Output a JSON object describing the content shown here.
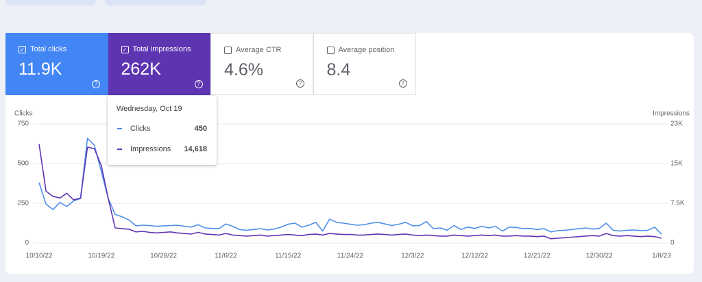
{
  "cards": [
    {
      "label": "Total clicks",
      "value": "11.9K"
    },
    {
      "label": "Total impressions",
      "value": "262K"
    },
    {
      "label": "Average CTR",
      "value": "4.6%"
    },
    {
      "label": "Average position",
      "value": "8.4"
    }
  ],
  "tooltip": {
    "date": "Wednesday, Oct 19",
    "rows": [
      {
        "name": "Clicks",
        "value": "450"
      },
      {
        "name": "Impressions",
        "value": "14,618"
      }
    ]
  },
  "chart_data": {
    "type": "line",
    "y_label": "Clicks",
    "y2_label": "Impressions",
    "categories": [
      "10/10/22",
      null,
      null,
      null,
      null,
      null,
      null,
      null,
      null,
      "10/19/22",
      null,
      null,
      null,
      null,
      null,
      null,
      null,
      null,
      "10/28/22",
      null,
      null,
      null,
      null,
      null,
      null,
      null,
      null,
      "11/6/22",
      null,
      null,
      null,
      null,
      null,
      null,
      null,
      null,
      "11/15/22",
      null,
      null,
      null,
      null,
      null,
      null,
      null,
      null,
      "11/24/22",
      null,
      null,
      null,
      null,
      null,
      null,
      null,
      null,
      "12/3/22",
      null,
      null,
      null,
      null,
      null,
      null,
      null,
      null,
      "12/12/22",
      null,
      null,
      null,
      null,
      null,
      null,
      null,
      null,
      "12/21/22",
      null,
      null,
      null,
      null,
      null,
      null,
      null,
      null,
      "12/30/22",
      null,
      null,
      null,
      null,
      null,
      null,
      null,
      null,
      "1/8/23"
    ],
    "series": [
      {
        "name": "Clicks",
        "color": "#4f8fea",
        "axis": "y",
        "values": [
          380,
          245,
          210,
          255,
          230,
          265,
          280,
          660,
          615,
          450,
          280,
          180,
          165,
          145,
          108,
          112,
          110,
          105,
          108,
          110,
          112,
          105,
          100,
          115,
          95,
          92,
          90,
          120,
          105,
          85,
          80,
          85,
          90,
          82,
          88,
          100,
          118,
          125,
          100,
          112,
          130,
          75,
          150,
          130,
          125,
          118,
          112,
          115,
          125,
          130,
          120,
          110,
          118,
          130,
          108,
          110,
          135,
          90,
          95,
          80,
          110,
          85,
          100,
          92,
          105,
          95,
          105,
          75,
          100,
          98,
          90,
          92,
          85,
          90,
          70,
          78,
          80,
          85,
          90,
          95,
          88,
          92,
          125,
          80,
          75,
          80,
          82,
          78,
          80,
          100,
          55
        ]
      },
      {
        "name": "Impressions",
        "color": "#5e35b1",
        "axis": "y2",
        "values": [
          18700,
          9800,
          8800,
          8500,
          9400,
          8150,
          8500,
          18100,
          17800,
          14618,
          8400,
          2850,
          2700,
          2600,
          2100,
          2200,
          2000,
          1900,
          2000,
          2100,
          1900,
          1800,
          1700,
          2000,
          1700,
          1600,
          1500,
          1800,
          1500,
          1400,
          1300,
          1400,
          1500,
          1300,
          1400,
          1500,
          1600,
          1500,
          1400,
          1600,
          1700,
          1500,
          1800,
          1700,
          1600,
          1600,
          1500,
          1500,
          1600,
          1700,
          1600,
          1500,
          1600,
          1700,
          1500,
          1400,
          1500,
          1400,
          1300,
          1300,
          1500,
          1400,
          1300,
          1400,
          1500,
          1400,
          1500,
          1300,
          1300,
          1400,
          1300,
          1300,
          1200,
          1300,
          800,
          900,
          1000,
          1100,
          1200,
          1300,
          1400,
          1300,
          1800,
          1400,
          1300,
          1400,
          1300,
          1200,
          1300,
          1200,
          900
        ]
      }
    ],
    "ylim": [
      0,
      750
    ],
    "yticks": [
      0,
      250,
      500,
      750
    ],
    "y2lim": [
      0,
      22500
    ],
    "y2ticks": [
      0,
      {
        "value": 7500,
        "label": "7.5K"
      },
      {
        "value": 15000,
        "label": "15K"
      },
      {
        "value": 22500,
        "label": "23K"
      }
    ],
    "grid": true
  }
}
